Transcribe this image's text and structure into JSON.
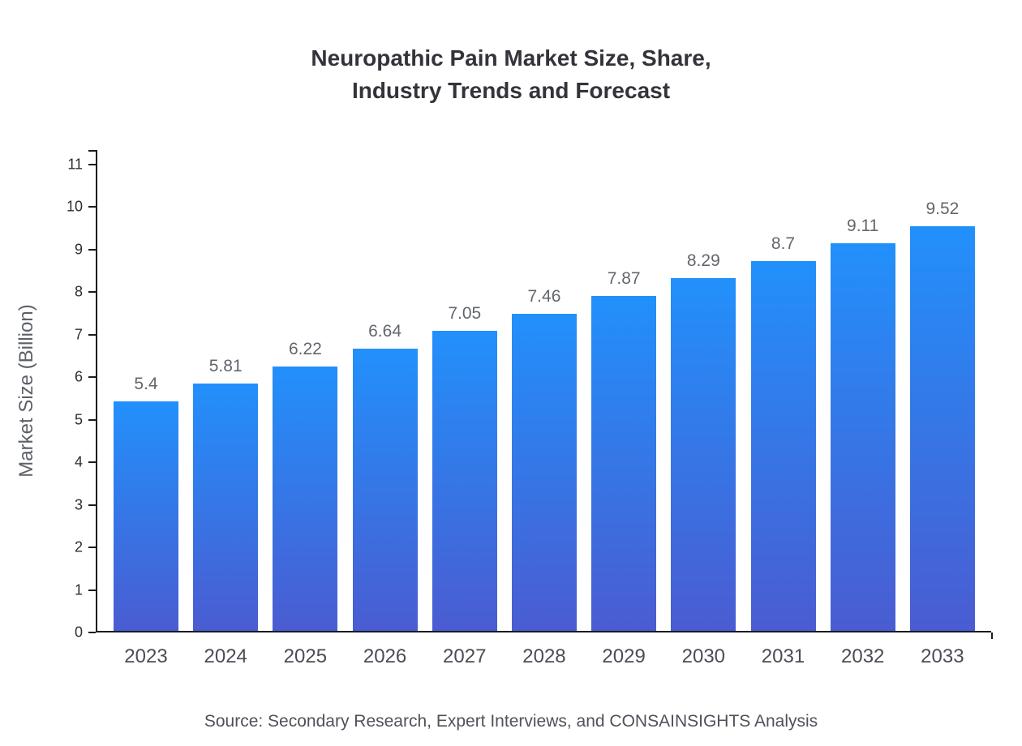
{
  "title_lines": [
    "Neuropathic Pain Market Size, Share,",
    "Industry Trends and Forecast"
  ],
  "source": "Source: Secondary Research, Expert Interviews, and CONSAINSIGHTS Analysis",
  "colors": {
    "bar_gradient_top": "#2290fb",
    "bar_gradient_bottom": "#4a5cd1",
    "axis": "#1b1b20",
    "title_text": "#33343b",
    "label_text": "#63666d"
  },
  "chart_data": {
    "type": "bar",
    "title": "Neuropathic Pain Market Size, Share, Industry Trends and Forecast",
    "xlabel": "",
    "ylabel": "Market Size (Billion)",
    "categories": [
      "2023",
      "2024",
      "2025",
      "2026",
      "2027",
      "2028",
      "2029",
      "2030",
      "2031",
      "2032",
      "2033"
    ],
    "values": [
      5.4,
      5.81,
      6.22,
      6.64,
      7.05,
      7.46,
      7.87,
      8.29,
      8.7,
      9.11,
      9.52
    ],
    "value_labels": [
      "5.4",
      "5.81",
      "6.22",
      "6.64",
      "7.05",
      "7.46",
      "7.87",
      "8.29",
      "8.7",
      "9.11",
      "9.52"
    ],
    "ylim": [
      0,
      11
    ],
    "yticks": [
      0,
      1,
      2,
      3,
      4,
      5,
      6,
      7,
      8,
      9,
      10,
      11
    ],
    "grid": false,
    "legend": false
  }
}
